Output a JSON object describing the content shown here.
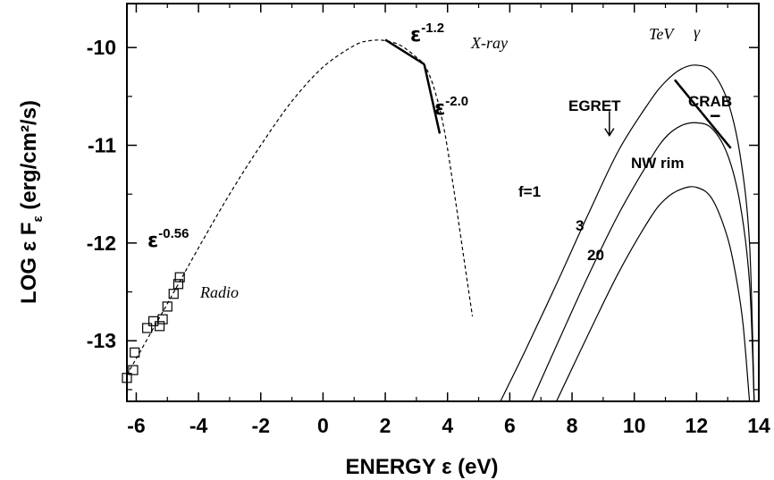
{
  "chart_data": {
    "type": "line",
    "xlabel": "ENERGY ε (eV)",
    "ylabel": "LOG ε F",
    "ylabel_sub": "ε",
    "ylabel_units": "(erg/cm²/s)",
    "xlim": [
      -6.3,
      14
    ],
    "ylim": [
      -13.62,
      -9.55
    ],
    "x_ticks": [
      -6,
      -4,
      -2,
      0,
      2,
      4,
      6,
      8,
      10,
      12,
      14
    ],
    "x_tick_labels": [
      "-6",
      "-4",
      "-2",
      "0",
      "2",
      "4",
      "6",
      "8",
      "10",
      "12",
      "14"
    ],
    "y_ticks": [
      -13,
      -12,
      -11,
      -10
    ],
    "y_tick_labels": [
      "-13",
      "-12",
      "-11",
      "-10"
    ],
    "grid": false,
    "series": [
      {
        "style": "dashed",
        "x": [
          -6.3,
          -5,
          -4,
          -3,
          -2,
          -1,
          0,
          1,
          1.5,
          2,
          2.5,
          3,
          3.3,
          3.6,
          3.9,
          4.2,
          4.5,
          4.8
        ],
        "y": [
          -13.35,
          -12.62,
          -12.05,
          -11.5,
          -11.0,
          -10.55,
          -10.2,
          -9.98,
          -9.93,
          -9.93,
          -9.98,
          -10.1,
          -10.2,
          -10.45,
          -10.85,
          -11.45,
          -12.1,
          -12.75
        ]
      },
      {
        "name": "f=1",
        "style": "solid",
        "x": [
          5.7,
          6.5,
          7.5,
          8.5,
          9.5,
          10.5,
          11.0,
          11.5,
          12.0,
          12.5,
          13.0,
          13.4,
          13.7,
          13.85
        ],
        "y": [
          -13.62,
          -13.1,
          -12.42,
          -11.72,
          -11.05,
          -10.55,
          -10.35,
          -10.22,
          -10.18,
          -10.25,
          -10.55,
          -11.1,
          -12.0,
          -13.62
        ]
      },
      {
        "name": "3",
        "style": "solid",
        "x": [
          6.7,
          7.5,
          8.5,
          9.5,
          10.5,
          11.0,
          11.5,
          12.0,
          12.5,
          13.0,
          13.4,
          13.7,
          13.85
        ],
        "y": [
          -13.62,
          -13.05,
          -12.35,
          -11.7,
          -11.15,
          -10.92,
          -10.8,
          -10.77,
          -10.83,
          -11.1,
          -11.6,
          -12.4,
          -13.62
        ]
      },
      {
        "name": "20",
        "style": "solid",
        "x": [
          7.5,
          8.5,
          9.5,
          10.5,
          11.0,
          11.5,
          12.0,
          12.5,
          13.0,
          13.3,
          13.5,
          13.7
        ],
        "y": [
          -13.62,
          -12.95,
          -12.3,
          -11.75,
          -11.55,
          -11.45,
          -11.43,
          -11.55,
          -11.95,
          -12.4,
          -12.85,
          -13.62
        ]
      }
    ],
    "radio_points": {
      "x": [
        -6.3,
        -6.1,
        -6.05,
        -5.65,
        -5.45,
        -5.25,
        -5.15,
        -5.0,
        -4.8,
        -4.65,
        -4.6
      ],
      "y": [
        -13.38,
        -13.3,
        -13.12,
        -12.87,
        -12.8,
        -12.85,
        -12.78,
        -12.65,
        -12.52,
        -12.42,
        -12.35
      ]
    },
    "crab_segment": {
      "x": [
        11.3,
        13.1
      ],
      "y": [
        -10.33,
        -11.03
      ]
    },
    "powerlaw_segments": [
      {
        "x": [
          2.0,
          3.25
        ],
        "y": [
          -9.92,
          -10.17
        ]
      },
      {
        "x": [
          3.25,
          3.75
        ],
        "y": [
          -10.17,
          -10.88
        ]
      }
    ],
    "egret_arrow": {
      "x": 9.2,
      "y_from": -10.65,
      "y_to": -10.9
    },
    "nw_rim_bar": {
      "x": [
        12.45,
        12.75
      ],
      "y": -10.7
    },
    "annotations": {
      "eps_radio_base": "ε",
      "eps_radio_exp": "-0.56",
      "eps_xray1_base": "ε",
      "eps_xray1_exp": "-1.2",
      "eps_xray2_base": "ε",
      "eps_xray2_exp": "-2.0",
      "xray": "X-ray",
      "radio": "Radio",
      "tev": "TeV",
      "gamma": "γ",
      "egret": "EGRET",
      "crab": "CRAB",
      "nw_rim": "NW rim",
      "f1": "f=1",
      "f3": "3",
      "f20": "20"
    }
  }
}
